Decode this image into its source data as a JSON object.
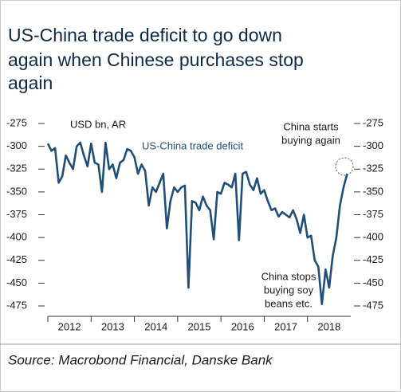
{
  "chart_data": {
    "type": "line",
    "title": [
      "US-China trade deficit to go down",
      "again when Chinese purchases stop",
      "again"
    ],
    "unit": "USD bn, AR",
    "annotations": [
      [
        "China starts",
        "buying again"
      ],
      [
        "China stops",
        "buying soy",
        "beans etc."
      ]
    ],
    "source": "Source: Macrobond Financial, Danske Bank",
    "x": [
      2012,
      2012.083,
      2012.167,
      2012.25,
      2012.333,
      2012.417,
      2012.5,
      2012.583,
      2012.667,
      2012.75,
      2012.833,
      2012.917,
      2013,
      2013.083,
      2013.167,
      2013.25,
      2013.333,
      2013.417,
      2013.5,
      2013.583,
      2013.667,
      2013.75,
      2013.833,
      2013.917,
      2014,
      2014.083,
      2014.167,
      2014.25,
      2014.333,
      2014.417,
      2014.5,
      2014.583,
      2014.667,
      2014.75,
      2014.833,
      2014.917,
      2015,
      2015.083,
      2015.167,
      2015.25,
      2015.333,
      2015.417,
      2015.5,
      2015.583,
      2015.667,
      2015.75,
      2015.833,
      2015.917,
      2016,
      2016.083,
      2016.167,
      2016.25,
      2016.333,
      2016.417,
      2016.5,
      2016.583,
      2016.667,
      2016.75,
      2016.833,
      2016.917,
      2017,
      2017.083,
      2017.167,
      2017.25,
      2017.333,
      2017.417,
      2017.5,
      2017.583,
      2017.667,
      2017.75,
      2017.833,
      2017.917,
      2018,
      2018.083,
      2018.167,
      2018.25,
      2018.333,
      2018.417,
      2018.5,
      2018.583,
      2018.667,
      2018.75,
      2018.833,
      2018.917
    ],
    "series": [
      {
        "name": "US-China trade deficit",
        "color": "#1f4e79",
        "values": [
          -297,
          -305,
          -302,
          -340,
          -333,
          -310,
          -318,
          -325,
          -300,
          -296,
          -310,
          -322,
          -297,
          -318,
          -320,
          -350,
          -296,
          -325,
          -320,
          -335,
          -318,
          -315,
          -303,
          -305,
          -312,
          -330,
          -320,
          -327,
          -365,
          -345,
          -350,
          -340,
          -330,
          -390,
          -360,
          -345,
          -350,
          -345,
          -343,
          -455,
          -360,
          -362,
          -370,
          -355,
          -365,
          -370,
          -402,
          -350,
          -352,
          -340,
          -342,
          -345,
          -330,
          -403,
          -330,
          -328,
          -342,
          -348,
          -335,
          -352,
          -348,
          -360,
          -370,
          -368,
          -377,
          -372,
          -375,
          -378,
          -370,
          -380,
          -395,
          -375,
          -400,
          -398,
          -425,
          -432,
          -473,
          -435,
          -455,
          -420,
          -400,
          -365,
          -345,
          -330
        ]
      }
    ],
    "xlim": [
      2012,
      2019
    ],
    "xticks": [
      2012,
      2013,
      2014,
      2015,
      2016,
      2017,
      2018
    ],
    "ylim": [
      -475,
      -275
    ],
    "yticks": [
      -275,
      -300,
      -325,
      -350,
      -375,
      -400,
      -425,
      -450,
      -475
    ],
    "y2lim": [
      -475,
      -275
    ],
    "y2ticks": [
      -275,
      -300,
      -325,
      -350,
      -375,
      -400,
      -425,
      -450,
      -475
    ]
  }
}
